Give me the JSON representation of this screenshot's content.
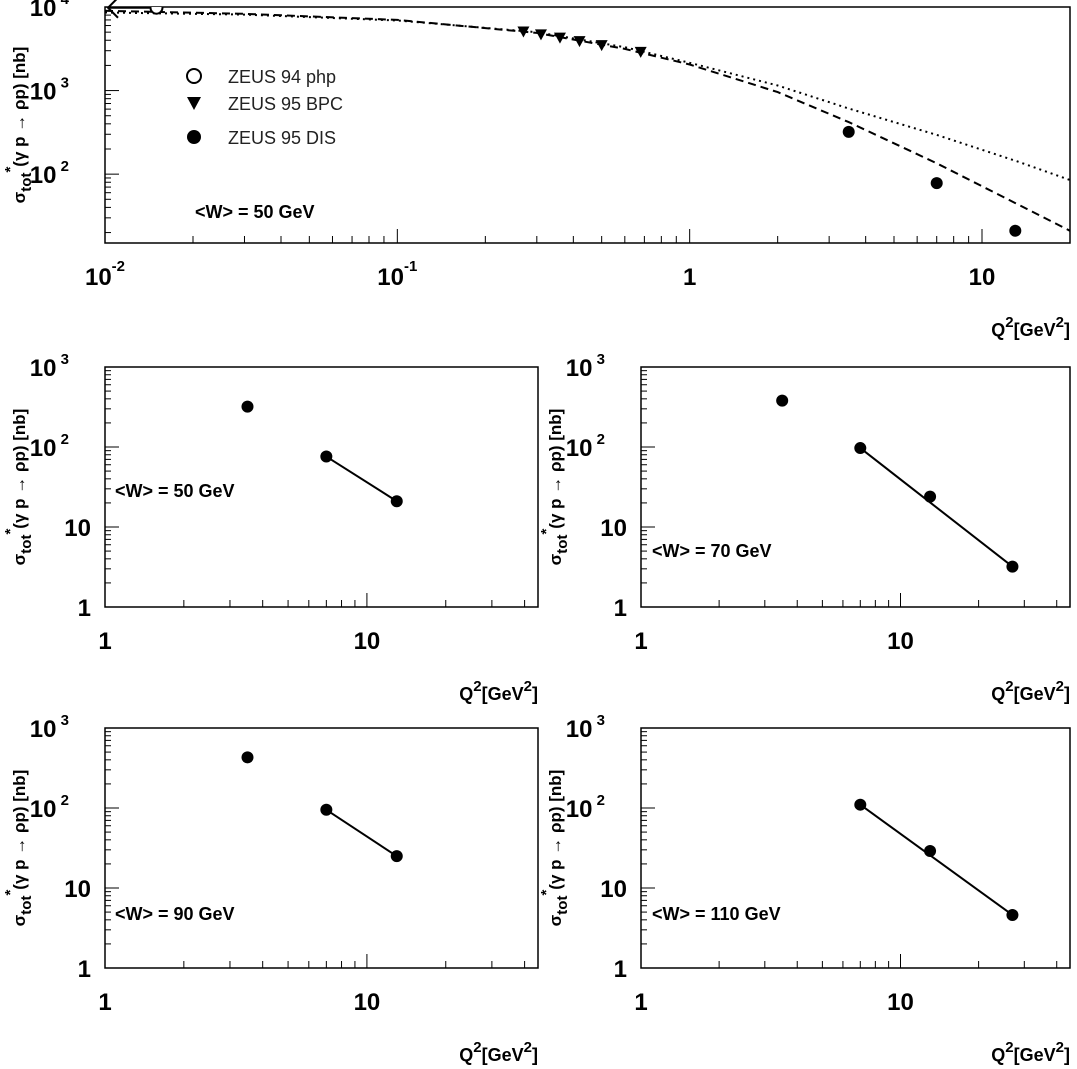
{
  "labels": {
    "y_sigma": "σ",
    "y_sub": "tot",
    "y_sup": "*",
    "y_rest": "(γ p → ρp) [nb]",
    "x_q": "Q",
    "x_sup1": "2",
    "x_mid": "[GeV",
    "x_sup2": "2",
    "x_end": "]"
  },
  "legend": {
    "php": "ZEUS 94 php",
    "bpc": "ZEUS 95 BPC",
    "dis": "ZEUS 95 DIS"
  },
  "chart_data": [
    {
      "type": "scatter",
      "log_x": true,
      "log_y": true,
      "xlim": [
        0.01,
        20
      ],
      "ylim": [
        15,
        10000
      ],
      "annotation": "<W> = 50 GeV",
      "x_ticks": [
        {
          "label": "10",
          "sup": "-2",
          "value": 0.01
        },
        {
          "label": "10",
          "sup": "-1",
          "value": 0.1
        },
        {
          "label": "1",
          "sup": "",
          "value": 1
        },
        {
          "label": "10",
          "sup": "",
          "value": 10
        }
      ],
      "y_ticks": [
        {
          "label": "10",
          "sup": "2",
          "value": 100
        },
        {
          "label": "10",
          "sup": "3",
          "value": 1000
        },
        {
          "label": "10",
          "sup": "4",
          "value": 10000
        }
      ],
      "series": [
        {
          "name": "ZEUS 94 php",
          "marker": "open-circle",
          "points": [
            [
              0.015,
              9800
            ]
          ]
        },
        {
          "name": "ZEUS 95 BPC",
          "marker": "triangle-down",
          "points": [
            [
              0.27,
              5100
            ],
            [
              0.31,
              4700
            ],
            [
              0.36,
              4300
            ],
            [
              0.42,
              3900
            ],
            [
              0.5,
              3500
            ],
            [
              0.68,
              2900
            ]
          ]
        },
        {
          "name": "ZEUS 95 DIS",
          "marker": "filled-circle",
          "points": [
            [
              3.5,
              320
            ],
            [
              7,
              78
            ],
            [
              13,
              21
            ]
          ]
        }
      ],
      "curves": [
        {
          "style": "dashed",
          "points": [
            [
              0.01,
              9000
            ],
            [
              0.03,
              8300
            ],
            [
              0.1,
              7000
            ],
            [
              0.3,
              4900
            ],
            [
              0.6,
              3150
            ],
            [
              1,
              2050
            ],
            [
              2,
              960
            ],
            [
              3.5,
              420
            ],
            [
              7,
              135
            ],
            [
              13,
              45
            ],
            [
              20,
              21
            ]
          ]
        },
        {
          "style": "dotted",
          "points": [
            [
              0.01,
              8600
            ],
            [
              0.03,
              8100
            ],
            [
              0.1,
              6900
            ],
            [
              0.3,
              5000
            ],
            [
              0.6,
              3300
            ],
            [
              1,
              2150
            ],
            [
              2,
              1150
            ],
            [
              3.5,
              610
            ],
            [
              7,
              295
            ],
            [
              13,
              145
            ],
            [
              20,
              85
            ]
          ]
        }
      ]
    },
    {
      "type": "scatter",
      "log_x": true,
      "log_y": true,
      "xlim": [
        1,
        45
      ],
      "ylim": [
        1,
        1000
      ],
      "annotation": "<W> = 50 GeV",
      "x_ticks": [
        {
          "label": "1",
          "sup": "",
          "value": 1
        },
        {
          "label": "10",
          "sup": "",
          "value": 10
        }
      ],
      "y_ticks": [
        {
          "label": "1",
          "sup": "",
          "value": 1
        },
        {
          "label": "10",
          "sup": "",
          "value": 10
        },
        {
          "label": "10",
          "sup": "2",
          "value": 100
        },
        {
          "label": "10",
          "sup": "3",
          "value": 1000
        }
      ],
      "series": [
        {
          "name": "ZEUS 95 DIS",
          "marker": "filled-circle",
          "points": [
            [
              3.5,
              320
            ],
            [
              7,
              76
            ],
            [
              13,
              21
            ]
          ]
        }
      ],
      "fit_line": [
        [
          7,
          76
        ],
        [
          13,
          21
        ]
      ]
    },
    {
      "type": "scatter",
      "log_x": true,
      "log_y": true,
      "xlim": [
        1,
        45
      ],
      "ylim": [
        1,
        1000
      ],
      "annotation": "<W> = 70 GeV",
      "x_ticks": [
        {
          "label": "1",
          "sup": "",
          "value": 1
        },
        {
          "label": "10",
          "sup": "",
          "value": 10
        }
      ],
      "y_ticks": [
        {
          "label": "1",
          "sup": "",
          "value": 1
        },
        {
          "label": "10",
          "sup": "",
          "value": 10
        },
        {
          "label": "10",
          "sup": "2",
          "value": 100
        },
        {
          "label": "10",
          "sup": "3",
          "value": 1000
        }
      ],
      "series": [
        {
          "name": "ZEUS 95 DIS",
          "marker": "filled-circle",
          "points": [
            [
              3.5,
              380
            ],
            [
              7,
              97
            ],
            [
              13,
              24
            ],
            [
              27,
              3.2
            ]
          ]
        }
      ],
      "fit_line": [
        [
          7,
          97
        ],
        [
          27,
          3.2
        ]
      ]
    },
    {
      "type": "scatter",
      "log_x": true,
      "log_y": true,
      "xlim": [
        1,
        45
      ],
      "ylim": [
        1,
        1000
      ],
      "annotation": "<W> = 90 GeV",
      "x_ticks": [
        {
          "label": "1",
          "sup": "",
          "value": 1
        },
        {
          "label": "10",
          "sup": "",
          "value": 10
        }
      ],
      "y_ticks": [
        {
          "label": "1",
          "sup": "",
          "value": 1
        },
        {
          "label": "10",
          "sup": "",
          "value": 10
        },
        {
          "label": "10",
          "sup": "2",
          "value": 100
        },
        {
          "label": "10",
          "sup": "3",
          "value": 1000
        }
      ],
      "series": [
        {
          "name": "ZEUS 95 DIS",
          "marker": "filled-circle",
          "points": [
            [
              3.5,
              430
            ],
            [
              7,
              95
            ],
            [
              13,
              25
            ]
          ]
        }
      ],
      "fit_line": [
        [
          7,
          95
        ],
        [
          13,
          25
        ]
      ]
    },
    {
      "type": "scatter",
      "log_x": true,
      "log_y": true,
      "xlim": [
        1,
        45
      ],
      "ylim": [
        1,
        1000
      ],
      "annotation": "<W> = 110 GeV",
      "x_ticks": [
        {
          "label": "1",
          "sup": "",
          "value": 1
        },
        {
          "label": "10",
          "sup": "",
          "value": 10
        }
      ],
      "y_ticks": [
        {
          "label": "1",
          "sup": "",
          "value": 1
        },
        {
          "label": "10",
          "sup": "",
          "value": 10
        },
        {
          "label": "10",
          "sup": "2",
          "value": 100
        },
        {
          "label": "10",
          "sup": "3",
          "value": 1000
        }
      ],
      "series": [
        {
          "name": "ZEUS 95 DIS",
          "marker": "filled-circle",
          "points": [
            [
              7,
              110
            ],
            [
              13,
              29
            ],
            [
              27,
              4.6
            ]
          ]
        }
      ],
      "fit_line": [
        [
          7,
          110
        ],
        [
          27,
          4.6
        ]
      ]
    }
  ]
}
